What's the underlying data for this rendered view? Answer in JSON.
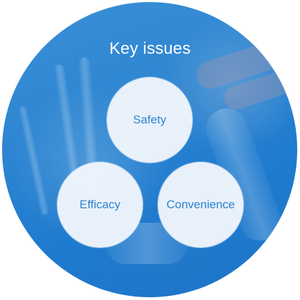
{
  "title": "Key issues",
  "issues": [
    {
      "label": "Safety"
    },
    {
      "label": "Efficacy"
    },
    {
      "label": "Convenience"
    }
  ],
  "colors": {
    "background_blue": "#2f86d2",
    "inner_circle": "#f4f8fd",
    "label_text": "#2d83cf",
    "title_text": "#ffffff"
  }
}
